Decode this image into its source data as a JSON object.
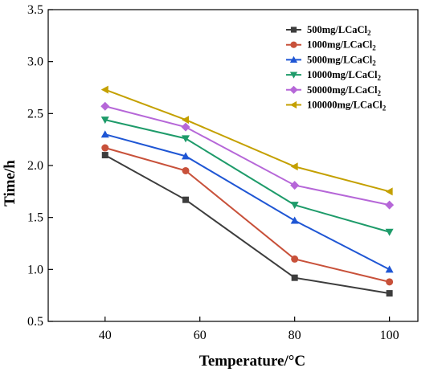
{
  "chart_data": {
    "type": "line",
    "title": "",
    "xlabel": "Temperature/°C",
    "ylabel": "Time/h",
    "x": [
      40,
      57,
      80,
      100
    ],
    "x_ticks": [
      40,
      60,
      80,
      100
    ],
    "y_ticks": [
      0.5,
      1.0,
      1.5,
      2.0,
      2.5,
      3.0,
      3.5
    ],
    "xlim": [
      28,
      106
    ],
    "ylim": [
      0.5,
      3.5
    ],
    "grid": false,
    "legend_position": "top-right",
    "series": [
      {
        "name": "500mg/LCaCl2",
        "label_base": "500mg/LCaCl",
        "label_sub": "2",
        "color": "#3d3d3d",
        "marker": "square",
        "values": [
          2.1,
          1.67,
          0.92,
          0.77
        ]
      },
      {
        "name": "1000mg/LCaCl2",
        "label_base": "1000mg/LCaCl",
        "label_sub": "2",
        "color": "#c8513a",
        "marker": "circle",
        "values": [
          2.17,
          1.95,
          1.1,
          0.88
        ]
      },
      {
        "name": "5000mg/LCaCl2",
        "label_base": "5000mg/LCaCl",
        "label_sub": "2",
        "color": "#1f56d4",
        "marker": "triangle-up",
        "values": [
          2.3,
          2.09,
          1.47,
          1.0
        ]
      },
      {
        "name": "10000mg/LCaCl2",
        "label_base": "10000mg/LCaCl",
        "label_sub": "2",
        "color": "#1e9b6a",
        "marker": "triangle-down",
        "values": [
          2.44,
          2.26,
          1.62,
          1.36
        ]
      },
      {
        "name": "50000mg/LCaCl2",
        "label_base": "50000mg/LCaCl",
        "label_sub": "2",
        "color": "#b667d8",
        "marker": "diamond",
        "values": [
          2.57,
          2.37,
          1.81,
          1.62
        ]
      },
      {
        "name": "100000mg/LCaCl2",
        "label_base": "100000mg/LCaCl",
        "label_sub": "2",
        "color": "#c4a000",
        "marker": "triangle-left",
        "values": [
          2.73,
          2.44,
          1.99,
          1.75
        ]
      }
    ]
  }
}
